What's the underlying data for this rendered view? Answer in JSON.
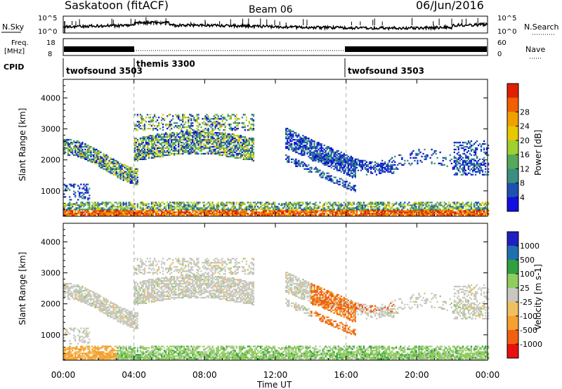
{
  "header": {
    "station": "Saskatoon (fitACF)",
    "beam": "Beam 06",
    "date": "06/Jun/2016"
  },
  "side_labels": {
    "nsky": "N.Sky",
    "freq": "Freq.",
    "freq_unit": "[MHz]",
    "cpid": "CPID",
    "nsearch": "N.Search",
    "nave": "Nave",
    "nsky_top_tick": "10^5",
    "nsky_bottom_tick": "10^0",
    "nsearch_top_tick": "10^5",
    "nsearch_bottom_tick": "10^0",
    "freq_top_tick": "18",
    "freq_bottom_tick": "8",
    "nave_top_tick": "60",
    "nave_bottom_tick": "0"
  },
  "cpid_segments": [
    {
      "label": "twofsound 3503",
      "start_hour": 0
    },
    {
      "label": "themis 3300",
      "start_hour": 4
    },
    {
      "label": "twofsound 3503",
      "start_hour": 16
    }
  ],
  "colors": {
    "power": [
      "#1010e0",
      "#2050b0",
      "#3a8f80",
      "#56a85a",
      "#9fcf30",
      "#e8c800",
      "#f0a000",
      "#f06000",
      "#e02000"
    ],
    "velocity": [
      "#e81010",
      "#f06010",
      "#f5a030",
      "#f0c060",
      "#c8c8c0",
      "#90cc60",
      "#30a040",
      "#2070b0",
      "#2020c0"
    ],
    "quiet_gray": "#c8c8c0"
  },
  "chart_data": [
    {
      "type": "heatmap",
      "title": "Power",
      "xlabel": "Time UT",
      "ylabel": "Slant Range [km]",
      "xlim": [
        0,
        24
      ],
      "ylim": [
        180,
        4600
      ],
      "x_ticks": [
        "00:00",
        "04:00",
        "08:00",
        "12:00",
        "16:00",
        "20:00",
        "00:00"
      ],
      "y_ticks": [
        1000,
        2000,
        3000,
        4000
      ],
      "colorbar": {
        "label": "Power [dB]",
        "ticks": [
          "4",
          "8",
          "12",
          "16",
          "20",
          "24",
          "28"
        ],
        "range": [
          0,
          30
        ]
      },
      "echo_regions": [
        {
          "region": "near-range band",
          "hours": [
            0,
            24
          ],
          "range_km": [
            200,
            650
          ],
          "level_db": [
            4,
            30
          ]
        },
        {
          "region": "early F-region arc",
          "hours": [
            0,
            4.2
          ],
          "range_km": [
            1500,
            2800
          ],
          "level_db": [
            4,
            20
          ]
        },
        {
          "region": "midday F-region",
          "hours": [
            4,
            10.8
          ],
          "range_km": [
            1800,
            3450
          ],
          "level_db": [
            4,
            20
          ]
        },
        {
          "region": "afternoon descending arc",
          "hours": [
            12.5,
            16.5
          ],
          "range_km": [
            1600,
            3000
          ],
          "level_db": [
            4,
            16
          ]
        },
        {
          "region": "evening patches",
          "hours": [
            16,
            24
          ],
          "range_km": [
            1200,
            2500
          ],
          "level_db": [
            4,
            10
          ]
        }
      ]
    },
    {
      "type": "heatmap",
      "title": "Velocity",
      "xlabel": "Time UT",
      "ylabel": "Slant Range [km]",
      "xlim": [
        0,
        24
      ],
      "ylim": [
        180,
        4600
      ],
      "x_ticks": [
        "00:00",
        "04:00",
        "08:00",
        "12:00",
        "16:00",
        "20:00",
        "00:00"
      ],
      "y_ticks": [
        1000,
        2000,
        3000,
        4000
      ],
      "colorbar": {
        "label": "Velocity [m s-1]",
        "ticks": [
          "1000",
          "500",
          "100",
          "25",
          "-25",
          "-100",
          "-500",
          "-1000"
        ],
        "range": [
          -1000,
          1000
        ]
      },
      "echo_regions": [
        {
          "region": "near-range band",
          "hours": [
            0,
            24
          ],
          "range_km": [
            200,
            650
          ],
          "velocity": "positive"
        },
        {
          "region": "early-morning near-range",
          "hours": [
            0,
            3
          ],
          "range_km": [
            200,
            800
          ],
          "velocity": "negative"
        },
        {
          "region": "F-region (ground scatter)",
          "hours": [
            0,
            24
          ],
          "range_km": [
            1500,
            3450
          ],
          "velocity": "near zero"
        },
        {
          "region": "afternoon descending arc",
          "hours": [
            14,
            18.7
          ],
          "range_km": [
            1600,
            2500
          ],
          "velocity": "negative"
        }
      ]
    }
  ]
}
